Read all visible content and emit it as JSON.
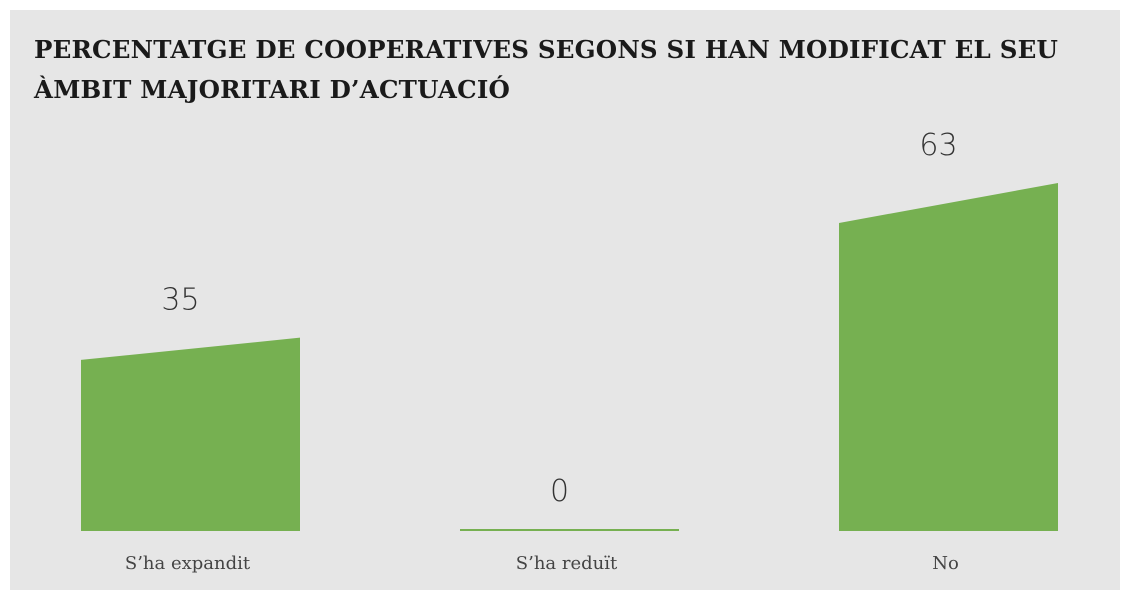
{
  "chart_data": {
    "type": "bar",
    "title": "PERCENTATGE DE COOPERATIVES SEGONS SI HAN MODIFICAT EL SEU ÀMBIT MAJORITARI D’ACTUACIÓ",
    "categories": [
      "S’ha expandit",
      "S’ha reduït",
      "No"
    ],
    "values": [
      35,
      0,
      63
    ],
    "ylim": [
      0,
      63
    ],
    "grid": false,
    "color": "#76b051"
  }
}
